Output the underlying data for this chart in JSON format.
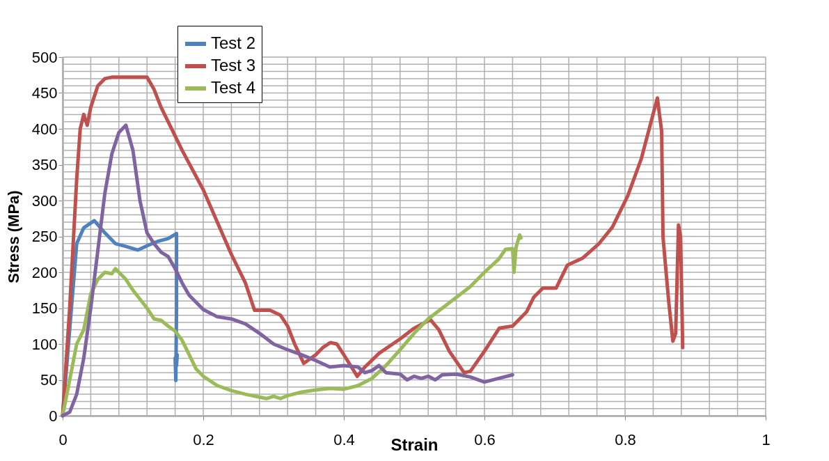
{
  "chart_data": {
    "type": "line",
    "xlabel": "Strain",
    "ylabel": "Stress (MPa)",
    "xlim": [
      0,
      1
    ],
    "xticks": [
      0,
      0.2,
      0.4,
      0.6,
      0.8,
      1
    ],
    "ylim": [
      0,
      500
    ],
    "yticks": [
      0,
      50,
      100,
      150,
      200,
      250,
      300,
      350,
      400,
      450,
      500
    ],
    "grid": true,
    "legend": "top left",
    "marker": "none",
    "line_style": "solid",
    "series": [
      {
        "name": "Test 2",
        "color": "#4f81bd",
        "x": [
          0,
          0.01,
          0.02,
          0.03,
          0.045,
          0.06,
          0.075,
          0.09,
          0.107,
          0.12,
          0.135,
          0.15,
          0.162,
          0.162,
          0.161,
          0.16,
          0.163,
          0.162
        ],
        "values": [
          0,
          120,
          240,
          262,
          272,
          255,
          240,
          236,
          231,
          237,
          243,
          247,
          254,
          150,
          49,
          80,
          85,
          70
        ]
      },
      {
        "name": "Test 3",
        "color": "#c0504d",
        "x": [
          0,
          0.01,
          0.02,
          0.025,
          0.03,
          0.035,
          0.04,
          0.05,
          0.06,
          0.07,
          0.1,
          0.12,
          0.13,
          0.14,
          0.15,
          0.17,
          0.2,
          0.22,
          0.24,
          0.26,
          0.273,
          0.295,
          0.31,
          0.32,
          0.33,
          0.343,
          0.36,
          0.37,
          0.381,
          0.39,
          0.4,
          0.419,
          0.43,
          0.45,
          0.48,
          0.5,
          0.523,
          0.535,
          0.55,
          0.571,
          0.58,
          0.6,
          0.621,
          0.64,
          0.66,
          0.67,
          0.683,
          0.702,
          0.718,
          0.74,
          0.763,
          0.782,
          0.804,
          0.823,
          0.846,
          0.852,
          0.854,
          0.862,
          0.868,
          0.872,
          0.876,
          0.879,
          0.882
        ],
        "values": [
          0,
          150,
          330,
          400,
          420,
          405,
          430,
          460,
          470,
          472,
          472,
          472,
          455,
          430,
          410,
          370,
          315,
          270,
          225,
          185,
          147,
          147,
          140,
          125,
          100,
          73,
          85,
          95,
          102,
          100,
          85,
          55,
          68,
          87,
          107,
          122,
          134,
          120,
          90,
          60,
          62,
          90,
          122,
          125,
          145,
          165,
          178,
          178,
          210,
          220,
          240,
          263,
          307,
          358,
          443,
          397,
          249,
          160,
          104,
          115,
          266,
          250,
          95
        ]
      },
      {
        "name": "Test 4",
        "color": "#9bbb59",
        "x": [
          0,
          0.01,
          0.02,
          0.03,
          0.04,
          0.05,
          0.06,
          0.07,
          0.075,
          0.09,
          0.1,
          0.12,
          0.13,
          0.14,
          0.15,
          0.16,
          0.17,
          0.18,
          0.19,
          0.2,
          0.22,
          0.24,
          0.26,
          0.28,
          0.29,
          0.3,
          0.31,
          0.32,
          0.34,
          0.36,
          0.38,
          0.4,
          0.42,
          0.44,
          0.46,
          0.48,
          0.5,
          0.52,
          0.54,
          0.56,
          0.58,
          0.6,
          0.62,
          0.63,
          0.64,
          0.642,
          0.645,
          0.65,
          0.652
        ],
        "values": [
          0,
          50,
          100,
          120,
          170,
          190,
          200,
          198,
          205,
          190,
          175,
          150,
          135,
          133,
          125,
          118,
          105,
          85,
          65,
          55,
          42,
          35,
          30,
          26,
          24,
          27,
          24,
          28,
          33,
          36,
          38,
          37,
          42,
          52,
          70,
          92,
          115,
          135,
          150,
          165,
          180,
          200,
          218,
          232,
          233,
          200,
          235,
          252,
          248
        ]
      },
      {
        "color": "#8064a2",
        "x": [
          0,
          0.01,
          0.02,
          0.03,
          0.04,
          0.05,
          0.06,
          0.07,
          0.08,
          0.09,
          0.1,
          0.11,
          0.12,
          0.13,
          0.14,
          0.15,
          0.16,
          0.17,
          0.18,
          0.2,
          0.22,
          0.24,
          0.26,
          0.28,
          0.3,
          0.32,
          0.34,
          0.36,
          0.38,
          0.4,
          0.42,
          0.43,
          0.44,
          0.45,
          0.46,
          0.48,
          0.49,
          0.5,
          0.51,
          0.52,
          0.53,
          0.54,
          0.56,
          0.58,
          0.6,
          0.62,
          0.64
        ],
        "values": [
          0,
          5,
          30,
          80,
          150,
          230,
          310,
          365,
          395,
          405,
          370,
          300,
          255,
          240,
          228,
          222,
          205,
          185,
          168,
          148,
          138,
          135,
          128,
          115,
          100,
          92,
          85,
          77,
          68,
          70,
          68,
          60,
          63,
          70,
          60,
          58,
          50,
          55,
          52,
          55,
          50,
          57,
          58,
          54,
          47,
          52,
          57
        ]
      }
    ]
  }
}
